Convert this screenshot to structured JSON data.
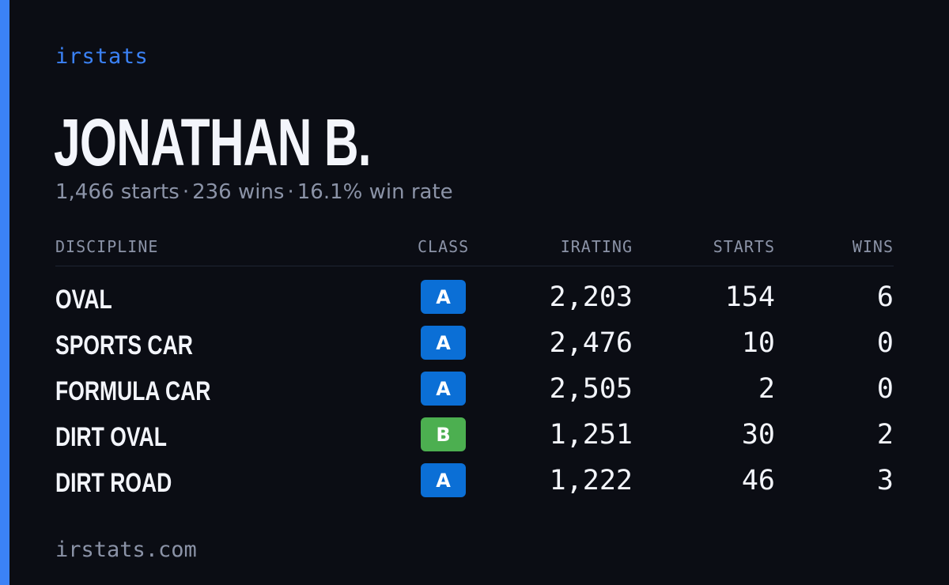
{
  "brand": "irstats",
  "driver": {
    "name": "JONATHAN B.",
    "starts_text": "1,466 starts",
    "wins_text": "236 wins",
    "win_rate_text": "16.1% win rate",
    "separator": "·"
  },
  "table": {
    "headers": {
      "discipline": "DISCIPLINE",
      "class": "CLASS",
      "irating": "IRATING",
      "starts": "STARTS",
      "wins": "WINS"
    },
    "rows": [
      {
        "discipline": "OVAL",
        "class": "A",
        "irating": "2,203",
        "starts": "154",
        "wins": "6"
      },
      {
        "discipline": "SPORTS CAR",
        "class": "A",
        "irating": "2,476",
        "starts": "10",
        "wins": "0"
      },
      {
        "discipline": "FORMULA CAR",
        "class": "A",
        "irating": "2,505",
        "starts": "2",
        "wins": "0"
      },
      {
        "discipline": "DIRT OVAL",
        "class": "B",
        "irating": "1,251",
        "starts": "30",
        "wins": "2"
      },
      {
        "discipline": "DIRT ROAD",
        "class": "A",
        "irating": "1,222",
        "starts": "46",
        "wins": "3"
      }
    ]
  },
  "class_colors": {
    "A": "#0b6fd6",
    "B": "#4caf50"
  },
  "accent_color": "#3b82f6",
  "footer": "irstats.com"
}
